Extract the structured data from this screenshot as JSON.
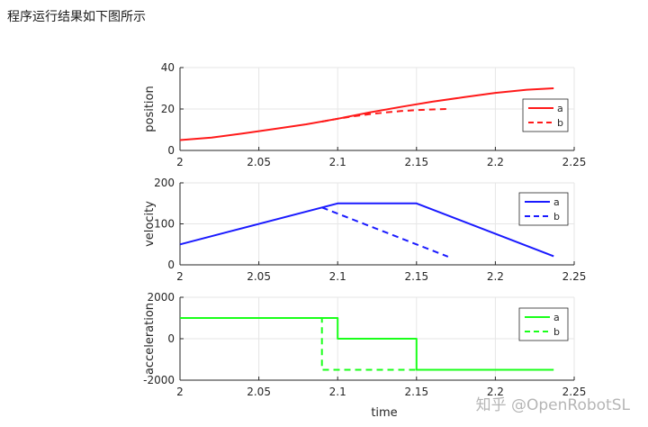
{
  "page": {
    "caption": "程序运行结果如下图所示",
    "watermark": "知乎 @OpenRobotSL"
  },
  "chart_data": [
    {
      "type": "line",
      "ylabel": "position",
      "xlabel": "",
      "xlim": [
        2,
        2.25
      ],
      "ylim": [
        0,
        40
      ],
      "xticks": [
        "2",
        "2.05",
        "2.1",
        "2.15",
        "2.2",
        "2.25"
      ],
      "yticks": [
        "0",
        "20",
        "40"
      ],
      "grid": true,
      "legend_position": "lower-right",
      "series": [
        {
          "name": "a",
          "color": "#ff1a1a",
          "style": "solid",
          "x": [
            2.0,
            2.02,
            2.04,
            2.06,
            2.08,
            2.1,
            2.12,
            2.14,
            2.16,
            2.18,
            2.2,
            2.22,
            2.237
          ],
          "y": [
            5.0,
            6.2,
            8.2,
            10.4,
            12.6,
            15.3,
            18.3,
            21.0,
            23.5,
            25.7,
            27.8,
            29.3,
            30.0
          ]
        },
        {
          "name": "b",
          "color": "#ff1a1a",
          "style": "dashed",
          "x": [
            2.09,
            2.1,
            2.11,
            2.12,
            2.13,
            2.14,
            2.15,
            2.16,
            2.17
          ],
          "y": [
            13.9,
            15.3,
            16.5,
            17.5,
            18.3,
            19.0,
            19.5,
            19.8,
            20.0
          ]
        }
      ]
    },
    {
      "type": "line",
      "ylabel": "velocity",
      "xlabel": "",
      "xlim": [
        2,
        2.25
      ],
      "ylim": [
        0,
        200
      ],
      "xticks": [
        "2",
        "2.05",
        "2.1",
        "2.15",
        "2.2",
        "2.25"
      ],
      "yticks": [
        "0",
        "100",
        "200"
      ],
      "grid": true,
      "legend_position": "top-right",
      "series": [
        {
          "name": "a",
          "color": "#1a1aff",
          "style": "solid",
          "x": [
            2.0,
            2.1,
            2.15,
            2.237
          ],
          "y": [
            50,
            150,
            150,
            21
          ]
        },
        {
          "name": "b",
          "color": "#1a1aff",
          "style": "dashed",
          "x": [
            2.09,
            2.17
          ],
          "y": [
            140,
            20
          ]
        }
      ]
    },
    {
      "type": "line",
      "ylabel": "acceleration",
      "xlabel": "time",
      "xlim": [
        2,
        2.25
      ],
      "ylim": [
        -2000,
        2000
      ],
      "xticks": [
        "2",
        "2.05",
        "2.1",
        "2.15",
        "2.2",
        "2.25"
      ],
      "yticks": [
        "-2000",
        "0",
        "2000"
      ],
      "grid": true,
      "legend_position": "top-right",
      "series": [
        {
          "name": "a",
          "color": "#1aff1a",
          "style": "solid",
          "x": [
            2.0,
            2.1,
            2.1,
            2.15,
            2.15,
            2.237
          ],
          "y": [
            1000,
            1000,
            0,
            0,
            -1500,
            -1500
          ]
        },
        {
          "name": "b",
          "color": "#1aff1a",
          "style": "dashed",
          "x": [
            2.0,
            2.09,
            2.09,
            2.15
          ],
          "y": [
            1000,
            1000,
            -1500,
            -1500
          ]
        }
      ]
    }
  ]
}
